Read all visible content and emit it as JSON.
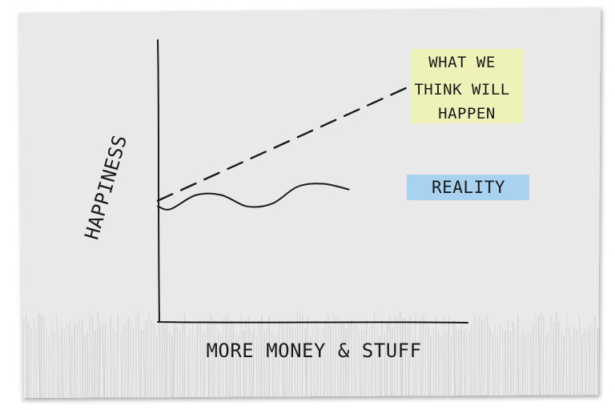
{
  "chart_data": {
    "type": "line",
    "xlabel": "MORE MONEY & STUFF",
    "ylabel": "HAPPINESS",
    "xlim": [
      0,
      10
    ],
    "ylim": [
      0,
      10
    ],
    "grid": false,
    "series": [
      {
        "name": "WHAT WE THINK WILL HAPPEN",
        "style": "dashed",
        "label_highlight": "#eef2b8",
        "x": [
          0,
          10
        ],
        "y": [
          4.3,
          8.4
        ]
      },
      {
        "name": "REALITY",
        "style": "solid",
        "label_highlight": "#a9d1f0",
        "x": [
          0,
          0.5,
          1.5,
          2.5,
          3.5,
          4.5,
          5.5,
          6.5,
          7.5
        ],
        "y": [
          4.1,
          4.0,
          4.5,
          4.5,
          4.1,
          4.2,
          4.8,
          4.9,
          4.7
        ]
      }
    ]
  },
  "colors": {
    "paper": "#e9e9e9",
    "ink": "#1a1a1a",
    "hatching": "#d2d2d2"
  }
}
